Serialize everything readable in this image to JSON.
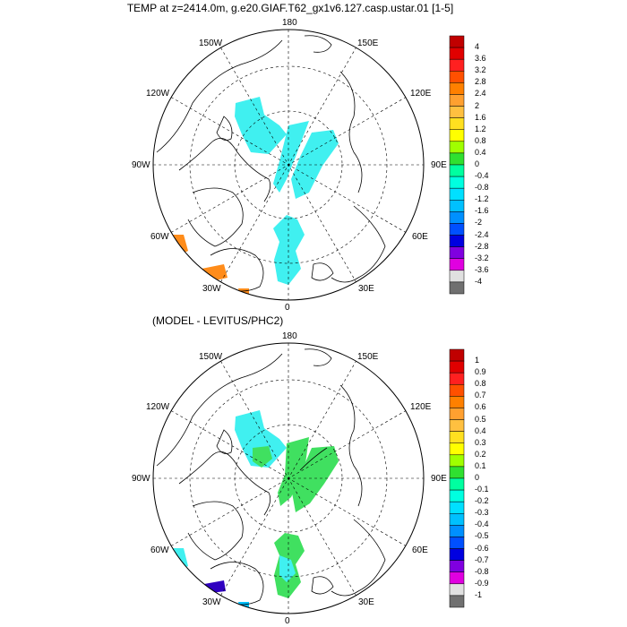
{
  "title": "TEMP at z=2414.0m, g.e20.GIAF.T62_gx1v6.127.casp.ustar.01 [1-5]",
  "subtitle": "(MODEL - LEVITUS/PHC2)",
  "longitude_labels": {
    "top": "180",
    "bottom": "0",
    "left": "90W",
    "right": "90E",
    "ul1": "150W",
    "ul2": "120W",
    "ur1": "150E",
    "ur2": "120E",
    "ll1": "60W",
    "ll2": "30W",
    "lr1": "60E",
    "lr2": "30E"
  },
  "colorbar_top": {
    "labels": [
      "4",
      "3.6",
      "3.2",
      "2.8",
      "2.4",
      "2",
      "1.6",
      "1.2",
      "0.8",
      "0.4",
      "0",
      "-0.4",
      "-0.8",
      "-1.2",
      "-1.6",
      "-2",
      "-2.4",
      "-2.8",
      "-3.2",
      "-3.6",
      "-4"
    ],
    "colors": [
      "#c00000",
      "#e00000",
      "#ff2020",
      "#ff5000",
      "#ff8000",
      "#ffa030",
      "#ffc040",
      "#ffe020",
      "#ffff00",
      "#a0ff00",
      "#30e030",
      "#00ffa0",
      "#00ffe0",
      "#00e0ff",
      "#00c0ff",
      "#0090ff",
      "#0050ff",
      "#0000e0",
      "#8000e0",
      "#e000e0",
      "#e0e0e0",
      "#707070"
    ]
  },
  "colorbar_bottom": {
    "labels": [
      "1",
      "0.9",
      "0.8",
      "0.7",
      "0.6",
      "0.5",
      "0.4",
      "0.3",
      "0.2",
      "0.1",
      "0",
      "-0.1",
      "-0.2",
      "-0.3",
      "-0.4",
      "-0.5",
      "-0.6",
      "-0.7",
      "-0.8",
      "-0.9",
      "-1"
    ],
    "colors": [
      "#c00000",
      "#e00000",
      "#ff2020",
      "#ff5000",
      "#ff8000",
      "#ffa030",
      "#ffc040",
      "#ffe020",
      "#ffff00",
      "#a0ff00",
      "#30e030",
      "#00ffa0",
      "#00ffe0",
      "#00e0ff",
      "#00c0ff",
      "#0090ff",
      "#0050ff",
      "#0000e0",
      "#8000e0",
      "#e000e0",
      "#e0e0e0",
      "#707070"
    ]
  },
  "colors": {
    "cyan_field": "#40f0f0",
    "green_field": "#40e060",
    "orange_patch": "#ff8c1a",
    "land_outline": "#000000"
  }
}
